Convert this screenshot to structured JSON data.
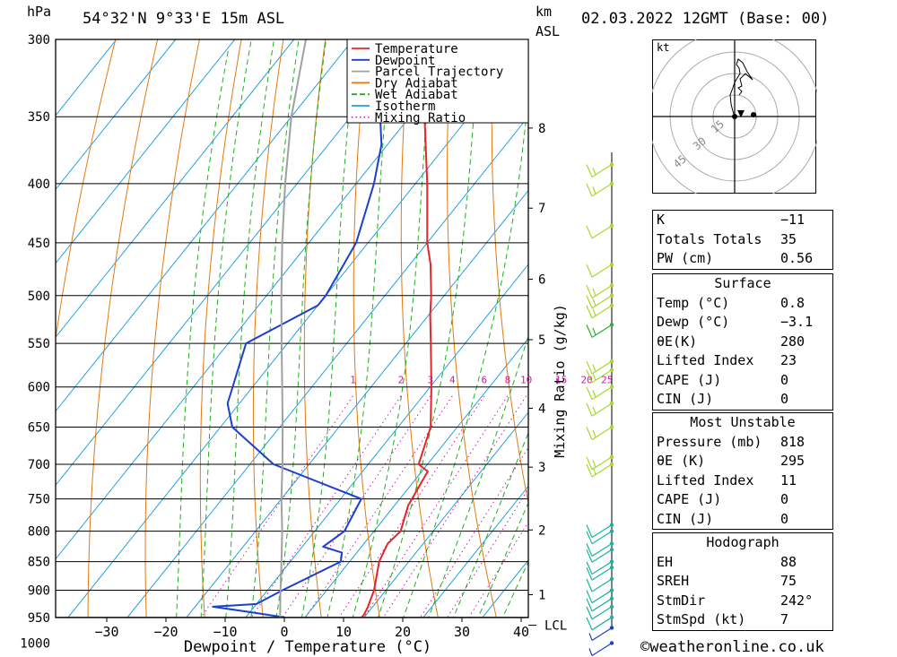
{
  "header": {
    "pressure_unit": "hPa",
    "location": "54°32'N  9°33'E  15m  ASL",
    "km_unit": "km",
    "asl_label": "ASL",
    "datetime": "02.03.2022  12GMT  (Base: 00)"
  },
  "chart_data": {
    "type": "line",
    "title": "",
    "xlabel": "Dewpoint / Temperature (°C)",
    "ylabel": "hPa",
    "x_ticks": [
      -30,
      -20,
      -10,
      0,
      10,
      20,
      30,
      40
    ],
    "pressure_levels": [
      300,
      350,
      400,
      450,
      500,
      550,
      600,
      650,
      700,
      750,
      800,
      850,
      900,
      950,
      1000
    ],
    "km_ticks": [
      {
        "km": "8",
        "p": 358
      },
      {
        "km": "7",
        "p": 420
      },
      {
        "km": "6",
        "p": 484
      },
      {
        "km": "5",
        "p": 546
      },
      {
        "km": "4",
        "p": 626
      },
      {
        "km": "3",
        "p": 704
      },
      {
        "km": "2",
        "p": 798
      },
      {
        "km": "1",
        "p": 908
      }
    ],
    "lcl": {
      "label": "LCL",
      "p": 965
    },
    "mixing_ratio_label": "Mixing Ratio (g/kg)",
    "mixing_ratio_values": [
      "1",
      "2",
      "3",
      "4",
      "6",
      "8",
      "10",
      "15",
      "20",
      "25"
    ],
    "legend": [
      {
        "name": "Temperature",
        "color": "#e8242b"
      },
      {
        "name": "Dewpoint",
        "color": "#1c3fd0"
      },
      {
        "name": "Parcel Trajectory",
        "color": "#a0a0a0"
      },
      {
        "name": "Dry Adiabat",
        "color": "#e07a10"
      },
      {
        "name": "Wet Adiabat",
        "color": "#1db01d"
      },
      {
        "name": "Isotherm",
        "color": "#1e9fe0"
      },
      {
        "name": "Mixing Ratio",
        "color": "#d01aa6"
      }
    ],
    "series": [
      {
        "name": "Temperature",
        "points": [
          [
            1015,
            0.8
          ],
          [
            1000,
            1.5
          ],
          [
            985,
            2.5
          ],
          [
            972,
            3.5
          ],
          [
            966,
            7.5
          ],
          [
            955,
            9.5
          ],
          [
            945,
            9.6
          ],
          [
            930,
            9.2
          ],
          [
            900,
            8.0
          ],
          [
            850,
            5.0
          ],
          [
            820,
            4.0
          ],
          [
            800,
            4.5
          ],
          [
            760,
            2.3
          ],
          [
            710,
            1.0
          ],
          [
            700,
            -1.5
          ],
          [
            650,
            -4.5
          ],
          [
            600,
            -9.8
          ],
          [
            550,
            -15.8
          ],
          [
            520,
            -19.7
          ],
          [
            500,
            -22.2
          ],
          [
            470,
            -26.5
          ],
          [
            450,
            -30.0
          ],
          [
            400,
            -38.0
          ],
          [
            350,
            -47.5
          ],
          [
            320,
            -53.5
          ],
          [
            300,
            -57.0
          ]
        ]
      },
      {
        "name": "Dewpoint",
        "points": [
          [
            1015,
            -3.1
          ],
          [
            1000,
            -3.4
          ],
          [
            985,
            -4.0
          ],
          [
            982,
            -22
          ],
          [
            980,
            -38
          ],
          [
            975,
            -38
          ],
          [
            972,
            -24
          ],
          [
            968,
            -10
          ],
          [
            962,
            -3.8
          ],
          [
            950,
            -3.5
          ],
          [
            940,
            -10
          ],
          [
            930,
            -17
          ],
          [
            925,
            -10
          ],
          [
            900,
            -7.5
          ],
          [
            850,
            -1.5
          ],
          [
            835,
            -2.5
          ],
          [
            825,
            -6.5
          ],
          [
            800,
            -5.0
          ],
          [
            750,
            -6.5
          ],
          [
            700,
            -26
          ],
          [
            650,
            -38
          ],
          [
            620,
            -42
          ],
          [
            550,
            -47
          ],
          [
            510,
            -40
          ],
          [
            500,
            -40
          ],
          [
            450,
            -42
          ],
          [
            400,
            -47
          ],
          [
            370,
            -51
          ],
          [
            350,
            -55
          ],
          [
            340,
            -47
          ],
          [
            335,
            -60
          ],
          [
            320,
            -57
          ],
          [
            310,
            -43
          ],
          [
            300,
            -47
          ]
        ]
      },
      {
        "name": "Parcel Trajectory",
        "points": [
          [
            1015,
            0.8
          ],
          [
            990,
            -1.5
          ],
          [
            965,
            -3.0
          ],
          [
            950,
            -4.2
          ],
          [
            900,
            -7.8
          ],
          [
            850,
            -11.5
          ],
          [
            800,
            -15.5
          ],
          [
            750,
            -20.0
          ],
          [
            700,
            -24.5
          ],
          [
            650,
            -29.5
          ],
          [
            600,
            -35.0
          ],
          [
            550,
            -41.0
          ],
          [
            500,
            -47.5
          ],
          [
            450,
            -54.5
          ],
          [
            400,
            -62.0
          ],
          [
            350,
            -70.0
          ],
          [
            300,
            -78.0
          ]
        ]
      }
    ]
  },
  "wind_barbs": [
    {
      "p": 1000,
      "speed": "5",
      "color": "#1c3fd0"
    },
    {
      "p": 970,
      "speed": "5",
      "color": "#1c3fd0"
    },
    {
      "p": 950,
      "speed": "10",
      "color": "#19b3a0"
    },
    {
      "p": 930,
      "speed": "10",
      "color": "#19b3a0"
    },
    {
      "p": 915,
      "speed": "10",
      "color": "#19b3a0"
    },
    {
      "p": 900,
      "speed": "10",
      "color": "#19b3a0"
    },
    {
      "p": 880,
      "speed": "10",
      "color": "#19b3a0"
    },
    {
      "p": 860,
      "speed": "10",
      "color": "#19b3a0"
    },
    {
      "p": 850,
      "speed": "10",
      "color": "#19b3a0"
    },
    {
      "p": 830,
      "speed": "10",
      "color": "#19b3a0"
    },
    {
      "p": 820,
      "speed": "10",
      "color": "#19b3a0"
    },
    {
      "p": 800,
      "speed": "10",
      "color": "#19b3a0"
    },
    {
      "p": 790,
      "speed": "10",
      "color": "#19b3a0"
    },
    {
      "p": 700,
      "speed": "15",
      "color": "#a6d92a"
    },
    {
      "p": 690,
      "speed": "15",
      "color": "#a6d92a"
    },
    {
      "p": 650,
      "speed": "15",
      "color": "#a6d92a"
    },
    {
      "p": 620,
      "speed": "15",
      "color": "#a6d92a"
    },
    {
      "p": 600,
      "speed": "15",
      "color": "#a6d92a"
    },
    {
      "p": 580,
      "speed": "15",
      "color": "#a6d92a"
    },
    {
      "p": 570,
      "speed": "15",
      "color": "#a6d92a"
    },
    {
      "p": 530,
      "speed": "15",
      "color": "#2ab02a"
    },
    {
      "p": 510,
      "speed": "15",
      "color": "#a6d92a"
    },
    {
      "p": 500,
      "speed": "15",
      "color": "#a6d92a"
    },
    {
      "p": 490,
      "speed": "15",
      "color": "#a6d92a"
    },
    {
      "p": 470,
      "speed": "10",
      "color": "#a6d92a"
    },
    {
      "p": 435,
      "speed": "10",
      "color": "#a6d92a"
    },
    {
      "p": 400,
      "speed": "15",
      "color": "#a6d92a"
    },
    {
      "p": 385,
      "speed": "15",
      "color": "#a6d92a"
    }
  ],
  "hodograph": {
    "unit": "kt",
    "ring_labels": [
      "15",
      "30",
      "45"
    ]
  },
  "stability_table": {
    "indices": [
      {
        "label": "K",
        "value": "-11"
      },
      {
        "label": "Totals Totals",
        "value": "35"
      },
      {
        "label": "PW (cm)",
        "value": "0.56"
      }
    ],
    "surface": {
      "title": "Surface",
      "rows": [
        {
          "label": "Temp (°C)",
          "value": "0.8"
        },
        {
          "label": "Dewp (°C)",
          "value": "-3.1"
        },
        {
          "label": "θE(K)",
          "value": "280"
        },
        {
          "label": "Lifted Index",
          "value": "23"
        },
        {
          "label": "CAPE (J)",
          "value": "0"
        },
        {
          "label": "CIN (J)",
          "value": "0"
        }
      ]
    },
    "most_unstable": {
      "title": "Most Unstable",
      "rows": [
        {
          "label": "Pressure (mb)",
          "value": "818"
        },
        {
          "label": "θE (K)",
          "value": "295"
        },
        {
          "label": "Lifted Index",
          "value": "11"
        },
        {
          "label": "CAPE (J)",
          "value": "0"
        },
        {
          "label": "CIN (J)",
          "value": "0"
        }
      ]
    },
    "hodograph_params": {
      "title": "Hodograph",
      "rows": [
        {
          "label": "EH",
          "value": "88"
        },
        {
          "label": "SREH",
          "value": "75"
        },
        {
          "label": "StmDir",
          "value": "242°"
        },
        {
          "label": "StmSpd (kt)",
          "value": "7"
        }
      ]
    }
  },
  "footer": {
    "copyright": "©weatheronline.co.uk"
  }
}
